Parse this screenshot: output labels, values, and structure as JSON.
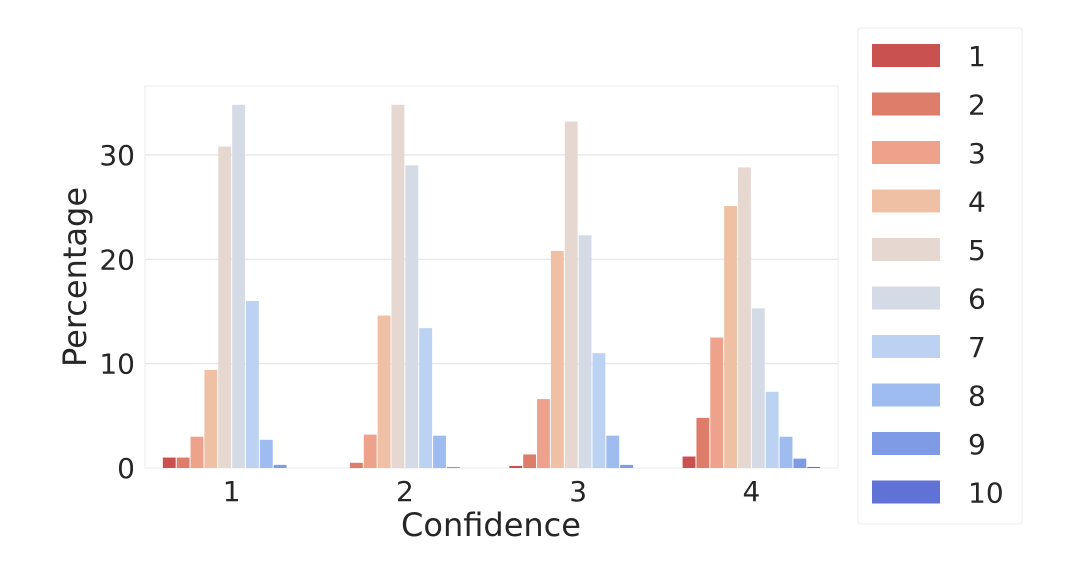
{
  "chart_data": {
    "type": "bar",
    "title": "",
    "xlabel": "Confidence",
    "ylabel": "Percentage",
    "categories": [
      "1",
      "2",
      "3",
      "4"
    ],
    "ylim": [
      0,
      36.6
    ],
    "yticks": [
      "0",
      "10",
      "20",
      "30"
    ],
    "grid": true,
    "legend_position": "right-outside",
    "series": [
      {
        "name": "1",
        "color": "#c9514f",
        "values": [
          1.0,
          0.0,
          0.2,
          1.1
        ]
      },
      {
        "name": "2",
        "color": "#de7e6a",
        "values": [
          1.0,
          0.5,
          1.3,
          4.8
        ]
      },
      {
        "name": "3",
        "color": "#eea18b",
        "values": [
          3.0,
          3.2,
          6.6,
          12.5
        ]
      },
      {
        "name": "4",
        "color": "#f0c0a4",
        "values": [
          9.4,
          14.6,
          20.8,
          25.1
        ]
      },
      {
        "name": "5",
        "color": "#e6d8d0",
        "values": [
          30.8,
          34.8,
          33.2,
          28.8
        ]
      },
      {
        "name": "6",
        "color": "#d4dbe6",
        "values": [
          34.8,
          29.0,
          22.3,
          15.3
        ]
      },
      {
        "name": "7",
        "color": "#bcd2f2",
        "values": [
          16.0,
          13.4,
          11.0,
          7.3
        ]
      },
      {
        "name": "8",
        "color": "#9ebcf0",
        "values": [
          2.7,
          3.1,
          3.1,
          3.0
        ]
      },
      {
        "name": "9",
        "color": "#7f9be6",
        "values": [
          0.3,
          0.1,
          0.3,
          0.9
        ]
      },
      {
        "name": "10",
        "color": "#6172d6",
        "values": [
          0.0,
          0.0,
          0.0,
          0.1
        ]
      }
    ]
  }
}
